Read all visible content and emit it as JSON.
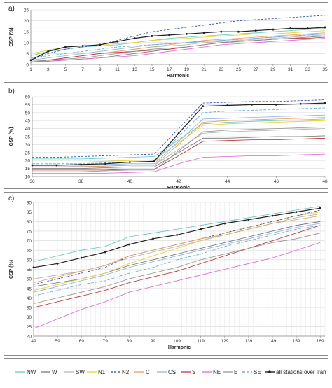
{
  "chart_data": [
    {
      "panel_label": "a)",
      "type": "line",
      "xlabel": "Harmonic",
      "ylabel": "CSP (%)",
      "xlim": [
        1,
        35
      ],
      "ylim": [
        0,
        25
      ],
      "x_ticks": [
        1,
        3,
        5,
        7,
        9,
        11,
        13,
        15,
        17,
        19,
        21,
        23,
        25,
        27,
        29,
        31,
        33,
        35
      ],
      "y_ticks": [
        0,
        5,
        10,
        15,
        20,
        25
      ],
      "x": [
        1,
        3,
        5,
        7,
        9,
        11,
        13,
        15,
        17,
        19,
        21,
        23,
        25,
        27,
        29,
        31,
        33,
        35
      ],
      "series": [
        {
          "name": "NW",
          "values": [
            4,
            6,
            7,
            8,
            8.5,
            9,
            10,
            11,
            12,
            12.5,
            13,
            13.5,
            14,
            14.5,
            15,
            15.5,
            16,
            16.5
          ]
        },
        {
          "name": "W",
          "values": [
            1,
            1.5,
            2,
            2.5,
            3,
            4,
            5,
            6,
            7,
            8,
            9,
            10,
            10.5,
            11,
            11.5,
            12,
            12.5,
            13
          ]
        },
        {
          "name": "SW",
          "values": [
            1.5,
            2,
            3,
            4,
            5,
            6,
            7,
            8,
            8.5,
            9,
            10,
            10.5,
            11,
            11.5,
            12,
            12.5,
            13,
            13.5
          ]
        },
        {
          "name": "N1",
          "values": [
            5,
            6.5,
            8,
            8.5,
            9,
            9.5,
            10,
            11,
            11.5,
            12,
            12.5,
            13,
            13.5,
            14,
            14,
            14.5,
            15,
            15.5
          ]
        },
        {
          "name": "N2",
          "values": [
            2,
            5,
            7,
            8,
            9,
            11,
            13,
            15,
            16,
            17,
            18,
            19,
            20,
            20.5,
            21,
            21.5,
            22,
            22.5
          ]
        },
        {
          "name": "C",
          "values": [
            1,
            2,
            3,
            4,
            5,
            6,
            7,
            8,
            9,
            10,
            11,
            11.5,
            12,
            12.5,
            13,
            13.5,
            14,
            14.5
          ]
        },
        {
          "name": "CS",
          "values": [
            2,
            3,
            4,
            5,
            6,
            7,
            8,
            9,
            9.5,
            10,
            10.5,
            11,
            11.5,
            12,
            12.5,
            13,
            13.5,
            14
          ]
        },
        {
          "name": "S",
          "values": [
            1,
            2,
            3,
            4,
            5,
            5.5,
            6,
            6.5,
            7,
            8,
            9,
            10,
            10.5,
            11,
            11.5,
            12,
            12,
            12.5
          ]
        },
        {
          "name": "NE",
          "values": [
            1,
            1.5,
            2,
            2.5,
            3,
            3.5,
            4,
            5,
            6,
            7,
            8,
            9,
            9.5,
            10,
            10.5,
            11,
            11.5,
            12
          ]
        },
        {
          "name": "E",
          "values": [
            1,
            2,
            2.5,
            3,
            4,
            5,
            6,
            7,
            7.5,
            8,
            9,
            10,
            10.5,
            11,
            11.5,
            12,
            12.5,
            13
          ]
        },
        {
          "name": "SE",
          "values": [
            3,
            4,
            5,
            6,
            7,
            8,
            8.5,
            9,
            9.5,
            10,
            10.5,
            11,
            11.5,
            12,
            12.5,
            13,
            13.5,
            14
          ]
        },
        {
          "name": "all stations over Iran",
          "values": [
            2,
            6,
            8,
            8.5,
            9,
            10.5,
            12,
            13,
            13.5,
            14,
            14.5,
            15,
            15,
            15.5,
            16,
            16.5,
            16.5,
            17
          ]
        }
      ]
    },
    {
      "panel_label": "b)",
      "type": "line",
      "xlabel": "Harmonic",
      "ylabel": "CSP (%)",
      "xlim": [
        36,
        48
      ],
      "ylim": [
        10,
        60
      ],
      "x_ticks": [
        36,
        38,
        40,
        42,
        44,
        46,
        48
      ],
      "y_ticks": [
        10,
        15,
        20,
        25,
        30,
        35,
        40,
        45,
        50,
        55,
        60
      ],
      "x": [
        36,
        37,
        38,
        39,
        40,
        41,
        42,
        43,
        44,
        45,
        46,
        47,
        48
      ],
      "series": [
        {
          "name": "NW",
          "values": [
            21,
            21,
            21,
            21.5,
            22,
            22.5,
            33,
            43,
            44,
            44.5,
            45,
            45.5,
            46
          ]
        },
        {
          "name": "W",
          "values": [
            15,
            15,
            15,
            15.5,
            16,
            16,
            25,
            34,
            34,
            34.5,
            35,
            35,
            35.5
          ]
        },
        {
          "name": "SW",
          "values": [
            16,
            16,
            16.5,
            16.5,
            17,
            17,
            27,
            37,
            38,
            38.5,
            39,
            39.5,
            40
          ]
        },
        {
          "name": "N1",
          "values": [
            19,
            19,
            19,
            19.5,
            20,
            20.5,
            31,
            42,
            43,
            43.5,
            44,
            44.5,
            45
          ]
        },
        {
          "name": "N2",
          "values": [
            22,
            22,
            22.5,
            23,
            23.5,
            24,
            40,
            56,
            56.5,
            57,
            57,
            57.5,
            58
          ]
        },
        {
          "name": "C",
          "values": [
            16,
            16,
            16,
            16.5,
            17,
            17,
            30,
            44,
            45,
            45.5,
            46,
            46.5,
            47
          ]
        },
        {
          "name": "CS",
          "values": [
            17,
            17,
            17,
            17.5,
            18,
            18,
            32,
            46,
            46.5,
            47,
            47.5,
            48,
            48.5
          ]
        },
        {
          "name": "S",
          "values": [
            14,
            14,
            14,
            14,
            14.5,
            14.5,
            23,
            32,
            32.5,
            33,
            33,
            33.5,
            34
          ]
        },
        {
          "name": "NE",
          "values": [
            12,
            12,
            12,
            12,
            12.5,
            13,
            18,
            22,
            22.5,
            23,
            23,
            23.5,
            24
          ]
        },
        {
          "name": "E",
          "values": [
            13,
            13,
            13,
            13.5,
            14,
            14,
            26,
            38,
            39,
            39.5,
            40,
            40.5,
            41
          ]
        },
        {
          "name": "SE",
          "values": [
            18,
            18,
            18,
            18.5,
            19,
            19,
            35,
            50,
            51,
            51.5,
            52,
            52.5,
            53
          ]
        },
        {
          "name": "all stations over Iran",
          "values": [
            17,
            17,
            17.5,
            18,
            19,
            19.5,
            37,
            54,
            54.5,
            55,
            55,
            55.5,
            56
          ]
        }
      ]
    },
    {
      "panel_label": "c)",
      "type": "line",
      "xlabel": "Harmonic",
      "ylabel": "CSP (%)",
      "xlim": [
        49,
        171
      ],
      "ylim": [
        20,
        90
      ],
      "x_ticks": [
        49,
        59,
        69,
        79,
        89,
        99,
        109,
        119,
        129,
        139,
        149,
        159,
        169
      ],
      "y_ticks": [
        20,
        25,
        30,
        35,
        40,
        45,
        50,
        55,
        60,
        65,
        70,
        75,
        80,
        85,
        90
      ],
      "x": [
        49,
        59,
        69,
        79,
        89,
        99,
        109,
        119,
        129,
        139,
        149,
        159,
        169
      ],
      "series": [
        {
          "name": "NW",
          "values": [
            59,
            62,
            65,
            67,
            72,
            74,
            76,
            78,
            80,
            82,
            84,
            86,
            88
          ]
        },
        {
          "name": "W",
          "values": [
            46,
            48,
            50,
            53,
            57,
            60,
            63,
            66,
            69,
            72,
            75,
            78,
            80
          ]
        },
        {
          "name": "SW",
          "values": [
            50,
            52,
            54,
            57,
            61,
            64,
            67,
            70,
            73,
            76,
            79,
            82,
            84
          ]
        },
        {
          "name": "N1",
          "values": [
            44,
            47,
            50,
            53,
            58,
            62,
            66,
            70,
            74,
            77,
            80,
            83,
            85
          ]
        },
        {
          "name": "N2",
          "values": [
            47,
            50,
            53,
            56,
            62,
            65,
            68,
            71,
            74,
            77,
            80,
            83,
            86
          ]
        },
        {
          "name": "C",
          "values": [
            48,
            51,
            54,
            57,
            62,
            65,
            68,
            71,
            73,
            76,
            79,
            81,
            83
          ]
        },
        {
          "name": "CS",
          "values": [
            43,
            46,
            49,
            52,
            56,
            59,
            62,
            65,
            68,
            71,
            74,
            77,
            79
          ]
        },
        {
          "name": "S",
          "values": [
            35,
            38,
            41,
            44,
            48,
            51,
            54,
            58,
            62,
            66,
            70,
            74,
            78
          ]
        },
        {
          "name": "NE",
          "values": [
            24,
            29,
            34,
            38,
            43,
            46,
            49,
            52,
            55,
            58,
            61,
            65,
            69
          ]
        },
        {
          "name": "E",
          "values": [
            37,
            40,
            43,
            46,
            50,
            53,
            56,
            60,
            63,
            66,
            69,
            71,
            74
          ]
        },
        {
          "name": "SE",
          "values": [
            41,
            44,
            47,
            49,
            53,
            56,
            60,
            63,
            67,
            70,
            73,
            76,
            78
          ]
        },
        {
          "name": "all stations over Iran",
          "values": [
            56,
            58,
            61,
            64,
            68,
            71,
            73,
            76,
            79,
            81,
            83,
            85,
            87
          ]
        }
      ]
    }
  ],
  "legend": [
    {
      "name": "NW",
      "color": "#5bc8c0"
    },
    {
      "name": "W",
      "color": "#707070"
    },
    {
      "name": "SW",
      "color": "#b0b0b0"
    },
    {
      "name": "N1",
      "color": "#e8d020"
    },
    {
      "name": "N2",
      "color": "#2040c0"
    },
    {
      "name": "C",
      "color": "#e89858"
    },
    {
      "name": "CS",
      "color": "#88b0e0"
    },
    {
      "name": "S",
      "color": "#c02828"
    },
    {
      "name": "NE",
      "color": "#e060d8"
    },
    {
      "name": "E",
      "color": "#909090"
    },
    {
      "name": "SE",
      "color": "#58a8d8"
    },
    {
      "name": "all stations over Iran",
      "color": "#202020"
    }
  ]
}
